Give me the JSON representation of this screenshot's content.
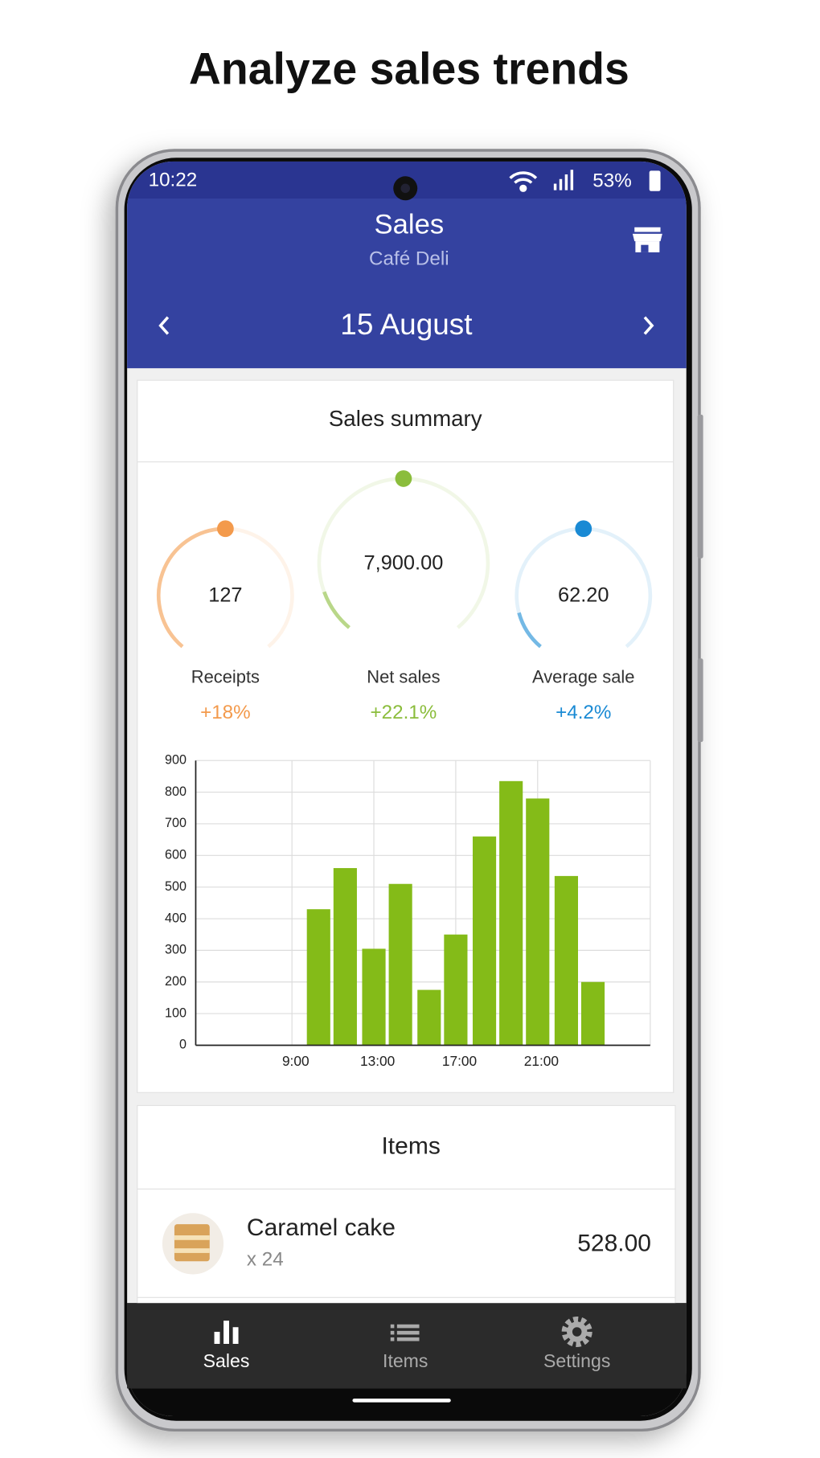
{
  "header": {
    "title": "Analyze sales trends"
  },
  "status_bar": {
    "time": "10:22",
    "battery": "53%"
  },
  "app_bar": {
    "title": "Sales",
    "subtitle": "Café Deli",
    "date": "15 August"
  },
  "summary": {
    "title": "Sales summary",
    "metrics": [
      {
        "value": "127",
        "label": "Receipts",
        "change": "+18%",
        "color": "#f39a4c"
      },
      {
        "value": "7,900.00",
        "label": "Net sales",
        "change": "+22.1%",
        "color": "#8bbd3c"
      },
      {
        "value": "62.20",
        "label": "Average sale",
        "change": "+4.2%",
        "color": "#1a8ad4"
      }
    ]
  },
  "chart_data": {
    "type": "bar",
    "color": "#84bb18",
    "x": [
      10.3,
      11.6,
      13.0,
      14.3,
      15.7,
      17.0,
      18.4,
      19.7,
      21.0,
      22.4,
      23.7
    ],
    "values": [
      430,
      560,
      305,
      510,
      175,
      350,
      660,
      835,
      780,
      535,
      200
    ],
    "xlim": [
      4.3,
      26.5
    ],
    "xticks": [
      {
        "value": 9,
        "label": "9:00"
      },
      {
        "value": 13,
        "label": "13:00"
      },
      {
        "value": 17,
        "label": "17:00"
      },
      {
        "value": 21,
        "label": "21:00"
      }
    ],
    "ylim": [
      0,
      900
    ],
    "yticks": [
      0,
      100,
      200,
      300,
      400,
      500,
      600,
      700,
      800,
      900
    ],
    "grid": true
  },
  "items": {
    "title": "Items",
    "rows": [
      {
        "name": "Caramel cake",
        "quantity": "x 24",
        "amount": "528.00"
      }
    ]
  },
  "nav": {
    "tabs": [
      {
        "label": "Sales"
      },
      {
        "label": "Items"
      },
      {
        "label": "Settings"
      }
    ]
  }
}
